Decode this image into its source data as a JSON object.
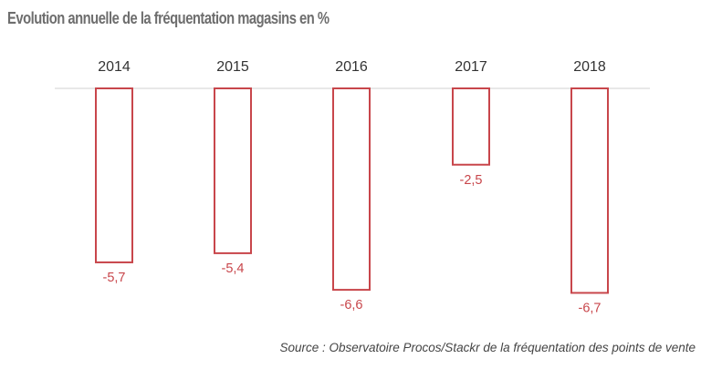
{
  "title": "Evolution annuelle de la fréquentation magasins en %",
  "source": "Source : Observatoire Procos/Stackr de la fréquentation des points de vente",
  "colors": {
    "bar_stroke": "#c8464b",
    "bar_fill": "#ffffff",
    "text": "#333333",
    "baseline": "#e0e0e0"
  },
  "chart_data": {
    "type": "bar",
    "categories": [
      "2014",
      "2015",
      "2016",
      "2017",
      "2018"
    ],
    "values": [
      -5.7,
      -5.4,
      -6.6,
      -2.5,
      -6.7
    ],
    "value_labels": [
      "-5,7",
      "-5,4",
      "-6,6",
      "-2,5",
      "-6,7"
    ],
    "ylim": [
      -7,
      0
    ],
    "grid": false,
    "legend": "none",
    "category_labels_position": "top"
  }
}
